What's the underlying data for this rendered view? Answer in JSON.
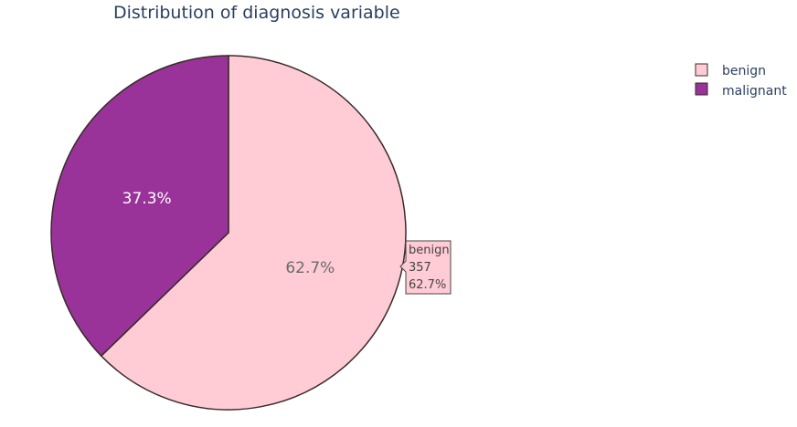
{
  "chart_data": {
    "type": "pie",
    "title": "Distribution of diagnosis variable",
    "labels": [
      "benign",
      "malignant"
    ],
    "values": [
      357,
      212
    ],
    "percent_labels": [
      "62.7%",
      "37.3%"
    ],
    "colors": [
      "#ffccd5",
      "#993399"
    ],
    "text_colors": [
      "#6b6b6b",
      "#ffffff"
    ],
    "outline_color": "#3a2a2a",
    "direction": "clockwise",
    "start": "top",
    "legend": {
      "placement": "top-right",
      "items": [
        {
          "label": "benign",
          "color": "#ffccd5"
        },
        {
          "label": "malignant",
          "color": "#993399"
        }
      ]
    },
    "hover": {
      "visible": true,
      "target": "benign",
      "lines": [
        "benign",
        "357",
        "62.7%"
      ]
    }
  }
}
